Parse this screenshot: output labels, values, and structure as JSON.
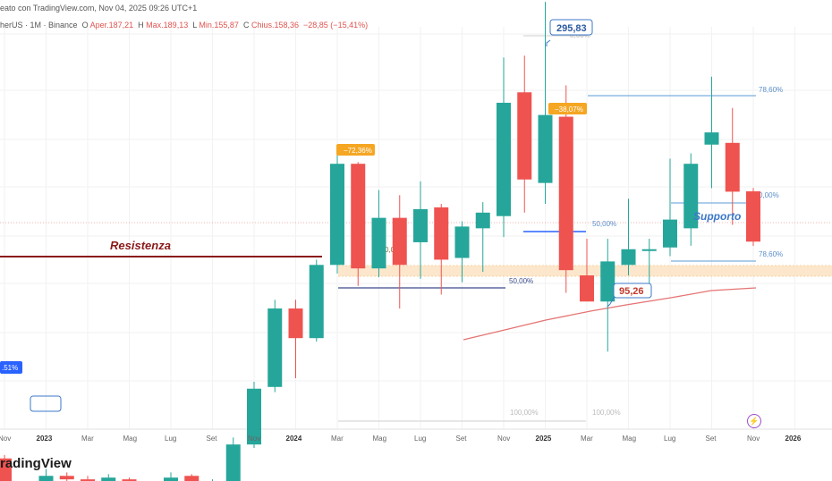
{
  "header": {
    "source_line": "eato con TradingView.com, Nov 04, 2025 09:26 UTC+1",
    "symbol_line": "herUS · 1M · Binance",
    "ohlc": {
      "open_label": "O",
      "open": "Aper.187,21",
      "high_label": "H",
      "high": "Max.189,13",
      "low_label": "L",
      "low": "Min.155,87",
      "close_label": "C",
      "close": "Chius.158,36",
      "change": "−28,85 (−15,41%)"
    }
  },
  "footer": {
    "logo": "radingView"
  },
  "annotations": {
    "resistance": "Resistenza",
    "support": "Supporto",
    "peak_price": "295,83",
    "low_price": "95,26",
    "drop1": "−72,36%",
    "drop2": "−38,07%",
    "left_badge": ".51%"
  },
  "fib_labels": [
    "8,60%",
    "78,60%",
    "0,00%",
    "50,00%",
    "78,60%",
    "0,00%",
    "50,00%",
    "100,00%",
    "100,00%"
  ],
  "colors": {
    "up": "#26a69a",
    "down": "#ef5350",
    "fib_blue": "#2962ff",
    "resistance": "#8b1a1a",
    "zone": "#fbe3c3",
    "ma": "#e57373"
  },
  "chart_data": {
    "type": "candlestick",
    "interval": "1M",
    "x_tick_labels": [
      "Nov",
      "2023",
      "Mar",
      "Mag",
      "Lug",
      "Set",
      "Nov",
      "2024",
      "Mar",
      "Mag",
      "Lug",
      "Set",
      "Nov",
      "2025",
      "Mar",
      "Mag",
      "Lug",
      "Set",
      "Nov",
      "2026"
    ],
    "y_axis": "hidden",
    "candles": [
      {
        "m": "2022-11",
        "o": 34,
        "h": 36,
        "l": 12,
        "c": 15
      },
      {
        "m": "2022-12",
        "o": 13,
        "h": 14,
        "l": 9,
        "c": 10
      },
      {
        "m": "2023-01",
        "o": 10,
        "h": 28,
        "l": 9,
        "c": 24
      },
      {
        "m": "2023-02",
        "o": 24,
        "h": 26,
        "l": 20,
        "c": 22
      },
      {
        "m": "2023-03",
        "o": 22,
        "h": 24,
        "l": 18,
        "c": 21
      },
      {
        "m": "2023-04",
        "o": 21,
        "h": 25,
        "l": 19,
        "c": 23
      },
      {
        "m": "2023-05",
        "o": 22,
        "h": 23,
        "l": 19,
        "c": 20
      },
      {
        "m": "2023-06",
        "o": 20,
        "h": 21,
        "l": 14,
        "c": 17
      },
      {
        "m": "2023-07",
        "o": 18,
        "h": 26,
        "l": 17,
        "c": 23
      },
      {
        "m": "2023-08",
        "o": 24,
        "h": 25,
        "l": 18,
        "c": 19
      },
      {
        "m": "2023-09",
        "o": 19,
        "h": 22,
        "l": 18,
        "c": 20
      },
      {
        "m": "2023-10",
        "o": 20,
        "h": 46,
        "l": 19,
        "c": 42
      },
      {
        "m": "2023-11",
        "o": 42,
        "h": 78,
        "l": 40,
        "c": 74
      },
      {
        "m": "2023-12",
        "o": 75,
        "h": 125,
        "l": 72,
        "c": 120
      },
      {
        "m": "2024-01",
        "o": 120,
        "h": 125,
        "l": 80,
        "c": 103
      },
      {
        "m": "2024-02",
        "o": 103,
        "h": 148,
        "l": 101,
        "c": 145
      },
      {
        "m": "2024-03",
        "o": 145,
        "h": 210,
        "l": 140,
        "c": 203
      },
      {
        "m": "2024-04",
        "o": 203,
        "h": 204,
        "l": 133,
        "c": 143
      },
      {
        "m": "2024-05",
        "o": 143,
        "h": 188,
        "l": 138,
        "c": 172
      },
      {
        "m": "2024-06",
        "o": 172,
        "h": 185,
        "l": 120,
        "c": 145
      },
      {
        "m": "2024-07",
        "o": 158,
        "h": 193,
        "l": 137,
        "c": 177
      },
      {
        "m": "2024-08",
        "o": 178,
        "h": 180,
        "l": 128,
        "c": 148
      },
      {
        "m": "2024-09",
        "o": 149,
        "h": 170,
        "l": 135,
        "c": 167
      },
      {
        "m": "2024-10",
        "o": 166,
        "h": 181,
        "l": 141,
        "c": 175
      },
      {
        "m": "2024-11",
        "o": 173,
        "h": 264,
        "l": 161,
        "c": 238
      },
      {
        "m": "2024-12",
        "o": 244,
        "h": 265,
        "l": 175,
        "c": 194
      },
      {
        "m": "2025-01",
        "o": 192,
        "h": 295.83,
        "l": 180,
        "c": 231
      },
      {
        "m": "2025-02",
        "o": 230,
        "h": 248,
        "l": 129,
        "c": 142
      },
      {
        "m": "2025-03",
        "o": 139,
        "h": 160,
        "l": 125,
        "c": 124
      },
      {
        "m": "2025-04",
        "o": 124,
        "h": 160,
        "l": 95.26,
        "c": 147
      },
      {
        "m": "2025-05",
        "o": 145,
        "h": 183,
        "l": 139,
        "c": 154
      },
      {
        "m": "2025-06",
        "o": 153,
        "h": 160,
        "l": 126,
        "c": 154
      },
      {
        "m": "2025-07",
        "o": 155,
        "h": 206,
        "l": 150,
        "c": 171
      },
      {
        "m": "2025-08",
        "o": 166,
        "h": 209,
        "l": 156,
        "c": 203
      },
      {
        "m": "2025-09",
        "o": 214,
        "h": 253,
        "l": 189,
        "c": 221
      },
      {
        "m": "2025-10",
        "o": 215,
        "h": 235,
        "l": 168,
        "c": 187
      },
      {
        "m": "2025-11",
        "o": 187.21,
        "h": 189.13,
        "l": 155.87,
        "c": 158.36
      }
    ],
    "annotated_levels": {
      "peak": 295.83,
      "low": 95.26
    }
  }
}
